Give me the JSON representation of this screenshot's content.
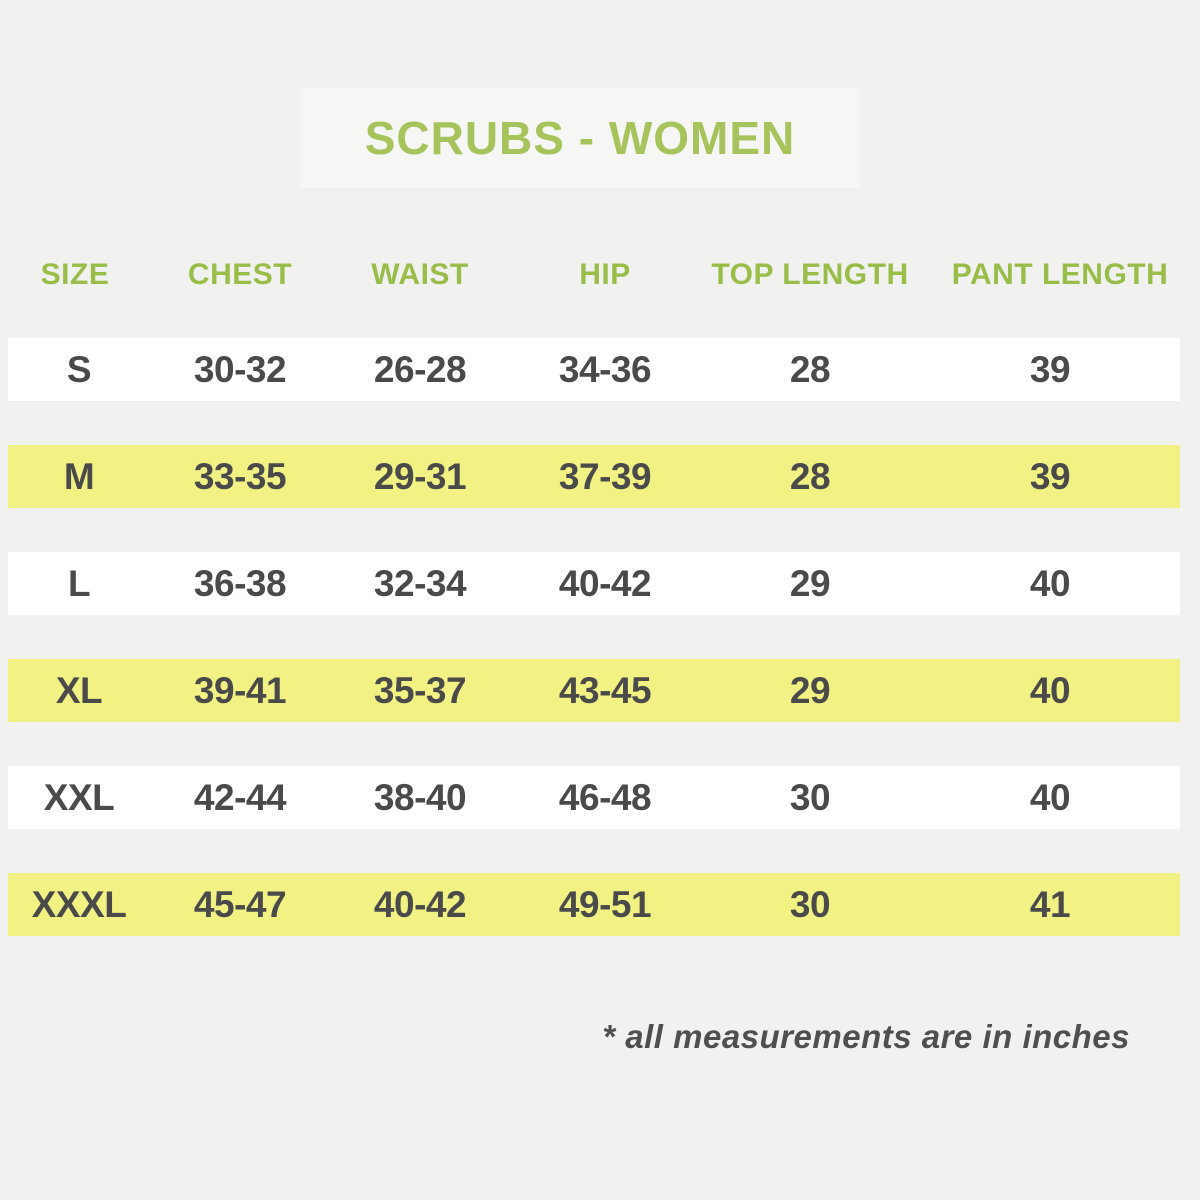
{
  "title": {
    "text": "SCRUBS - WOMEN"
  },
  "table": {
    "columns": [
      "SIZE",
      "CHEST",
      "WAIST",
      "HIP",
      "TOP LENGTH",
      "PANT LENGTH"
    ],
    "rows": [
      {
        "size": "S",
        "chest": "30-32",
        "waist": "26-28",
        "hip": "34-36",
        "top_length": "28",
        "pant_length": "39",
        "highlighted": false
      },
      {
        "size": "M",
        "chest": "33-35",
        "waist": "29-31",
        "hip": "37-39",
        "top_length": "28",
        "pant_length": "39",
        "highlighted": true
      },
      {
        "size": "L",
        "chest": "36-38",
        "waist": "32-34",
        "hip": "40-42",
        "top_length": "29",
        "pant_length": "40",
        "highlighted": false
      },
      {
        "size": "XL",
        "chest": "39-41",
        "waist": "35-37",
        "hip": "43-45",
        "top_length": "29",
        "pant_length": "40",
        "highlighted": true
      },
      {
        "size": "XXL",
        "chest": "42-44",
        "waist": "38-40",
        "hip": "46-48",
        "top_length": "30",
        "pant_length": "40",
        "highlighted": false
      },
      {
        "size": "XXXL",
        "chest": "45-47",
        "waist": "40-42",
        "hip": "49-51",
        "top_length": "30",
        "pant_length": "41",
        "highlighted": true
      }
    ]
  },
  "footnote": {
    "text": "* all measurements are in inches"
  },
  "colors": {
    "page_background": "#f1f1ef",
    "title_box_background": "#f6f6f4",
    "title_green": "#a6c35c",
    "header_green": "#99bd49",
    "row_white": "#ffffff",
    "row_highlight_yellow": "#f1f283",
    "data_text": "#4a4a4a",
    "footnote_text": "#4f4f4f"
  },
  "chart_data": {
    "type": "table",
    "title": "SCRUBS - WOMEN",
    "columns": [
      "SIZE",
      "CHEST",
      "WAIST",
      "HIP",
      "TOP LENGTH",
      "PANT LENGTH"
    ],
    "rows": [
      [
        "S",
        "30-32",
        "26-28",
        "34-36",
        "28",
        "39"
      ],
      [
        "M",
        "33-35",
        "29-31",
        "37-39",
        "28",
        "39"
      ],
      [
        "L",
        "36-38",
        "32-34",
        "40-42",
        "29",
        "40"
      ],
      [
        "XL",
        "39-41",
        "35-37",
        "43-45",
        "29",
        "40"
      ],
      [
        "XXL",
        "42-44",
        "38-40",
        "46-48",
        "30",
        "40"
      ],
      [
        "XXXL",
        "45-47",
        "40-42",
        "49-51",
        "30",
        "41"
      ]
    ],
    "highlighted_rows": [
      "M",
      "XL",
      "XXXL"
    ],
    "footnote": "* all measurements are in inches",
    "units": "inches"
  }
}
